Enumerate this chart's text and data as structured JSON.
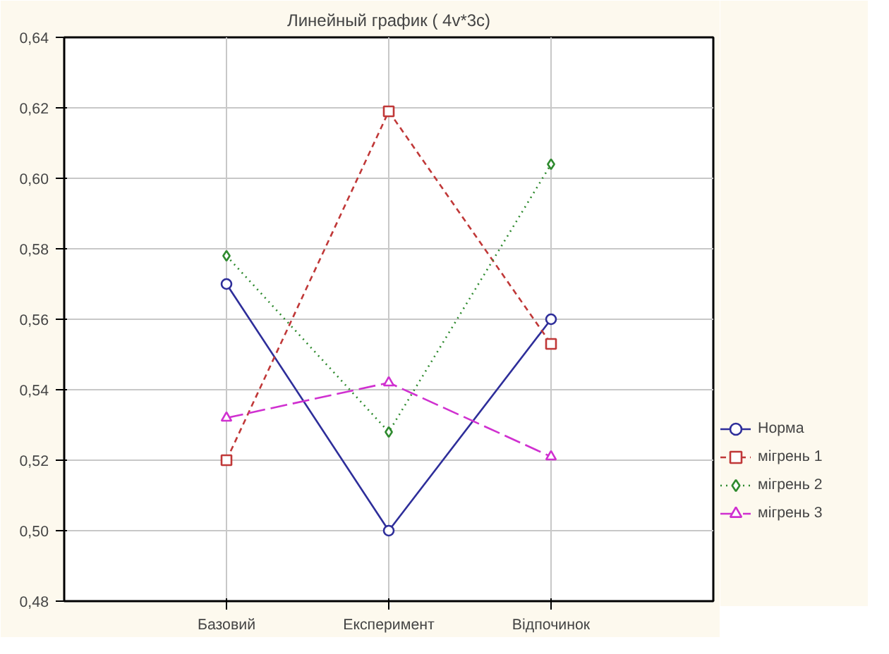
{
  "chart_data": {
    "type": "line",
    "title": "Линейный график ( 4v*3c)",
    "categories": [
      "Базовий",
      "Експеримент",
      "Відпочинок"
    ],
    "series": [
      {
        "name": "Норма",
        "color": "#2e2e9a",
        "values": [
          0.57,
          0.5,
          0.56
        ],
        "marker": "circle",
        "line_style": "solid"
      },
      {
        "name": "мігрень 1",
        "color": "#c03838",
        "values": [
          0.52,
          0.619,
          0.553
        ],
        "marker": "square",
        "line_style": "dashed"
      },
      {
        "name": "мігрень 2",
        "color": "#2e8a2e",
        "values": [
          0.578,
          0.528,
          0.604
        ],
        "marker": "diamond",
        "line_style": "dotted"
      },
      {
        "name": "мігрень 3",
        "color": "#d030d0",
        "values": [
          0.532,
          0.542,
          0.521
        ],
        "marker": "triangle",
        "line_style": "longdash"
      }
    ],
    "ylim": [
      0.48,
      0.64
    ],
    "yticks": [
      {
        "value": 0.48,
        "label": "0,48"
      },
      {
        "value": 0.5,
        "label": "0,50"
      },
      {
        "value": 0.52,
        "label": "0,52"
      },
      {
        "value": 0.54,
        "label": "0,54"
      },
      {
        "value": 0.56,
        "label": "0,56"
      },
      {
        "value": 0.58,
        "label": "0,58"
      },
      {
        "value": 0.6,
        "label": "0,60"
      },
      {
        "value": 0.62,
        "label": "0,62"
      },
      {
        "value": 0.64,
        "label": "0,64"
      }
    ],
    "grid": true,
    "legend": "bottom right"
  }
}
